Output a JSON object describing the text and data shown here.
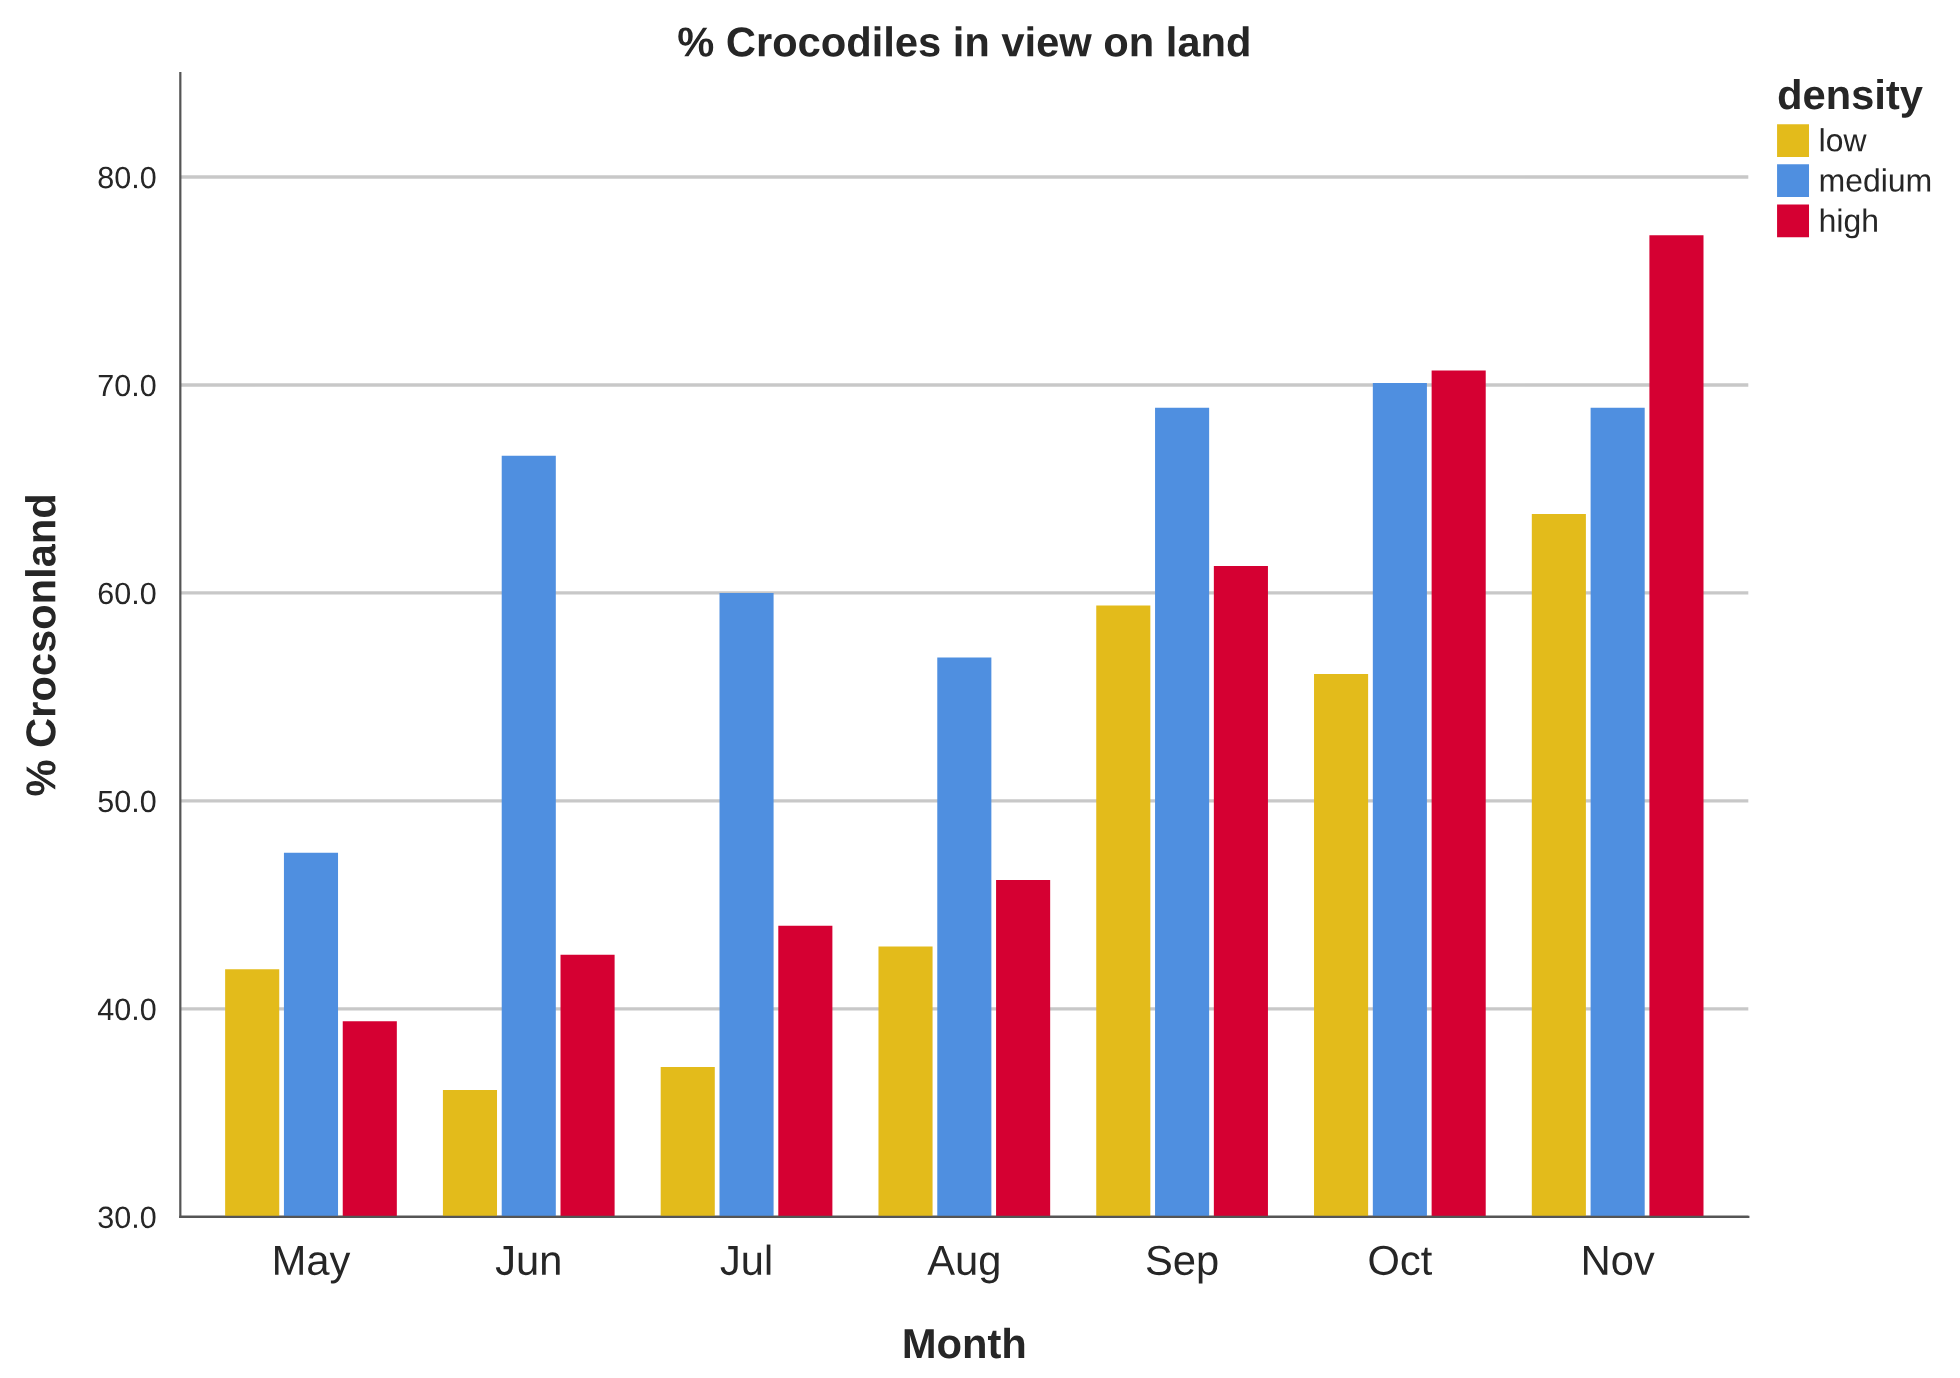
{
  "chart_data": {
    "type": "bar",
    "title": "% Crocodiles in view on land",
    "xlabel": "Month",
    "ylabel": "% Crocsonland",
    "legend_title": "density",
    "categories": [
      "May",
      "Jun",
      "Jul",
      "Aug",
      "Sep",
      "Oct",
      "Nov"
    ],
    "series": [
      {
        "name": "low",
        "color": "#e3bb1b",
        "values": [
          41.9,
          36.1,
          37.2,
          43.0,
          59.4,
          56.1,
          63.8
        ]
      },
      {
        "name": "medium",
        "color": "#4f8fe0",
        "values": [
          47.5,
          66.6,
          60.0,
          56.9,
          68.9,
          70.1,
          68.9
        ]
      },
      {
        "name": "high",
        "color": "#d50032",
        "values": [
          39.4,
          42.6,
          44.0,
          46.2,
          61.3,
          70.7,
          77.2
        ]
      }
    ],
    "ylim": [
      30,
      85
    ],
    "yticks": [
      {
        "value": 30,
        "label": "30.0"
      },
      {
        "value": 40,
        "label": "40.0"
      },
      {
        "value": 50,
        "label": "50.0"
      },
      {
        "value": 60,
        "label": "60.0"
      },
      {
        "value": 70,
        "label": "70.0"
      },
      {
        "value": 80,
        "label": "80.0"
      }
    ],
    "grid": "y",
    "legend": "top right"
  }
}
